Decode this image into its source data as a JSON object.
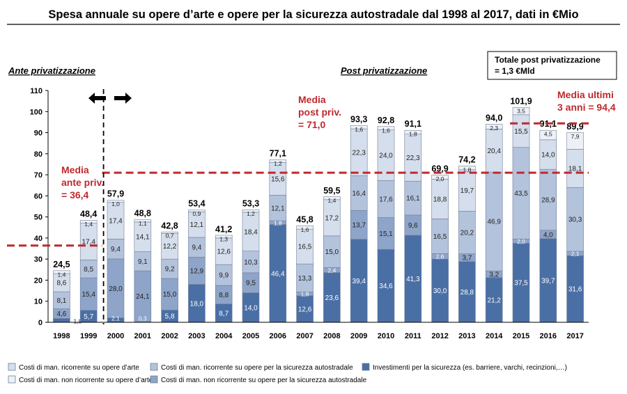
{
  "chart_data": {
    "type": "bar",
    "stacked": true,
    "title": "Spesa annuale su opere d’arte e opere per la sicurezza autostradale dal 1998 al 2017, dati in €Mio",
    "ylim": [
      0,
      110
    ],
    "yticks": [
      "0",
      "10",
      "20",
      "30",
      "40",
      "50",
      "60",
      "70",
      "80",
      "90",
      "100",
      "110"
    ],
    "grid": false,
    "legend_position": "bottom",
    "categories": [
      "1998",
      "1999",
      "2000",
      "2001",
      "2002",
      "2003",
      "2004",
      "2005",
      "2006",
      "2007",
      "2008",
      "2009",
      "2010",
      "2011",
      "2012",
      "2013",
      "2014",
      "2015",
      "2016",
      "2017"
    ],
    "totals": [
      24.5,
      48.4,
      57.9,
      48.8,
      42.8,
      53.4,
      41.2,
      53.3,
      77.1,
      45.8,
      59.5,
      93.3,
      92.8,
      91.1,
      69.9,
      74.2,
      94.0,
      101.9,
      91.1,
      89.9
    ],
    "totals_labels": [
      "24,5",
      "48,4",
      "57,9",
      "48,8",
      "42,8",
      "53,4",
      "41,2",
      "53,3",
      "77,1",
      "45,8",
      "59,5",
      "93,3",
      "92,8",
      "91,1",
      "69,9",
      "74,2",
      "94,0",
      "101,9",
      "91,1",
      "89,9"
    ],
    "series": [
      {
        "name": "Investimenti per la sicurezza (es. barriere, varchi, recinzioni,…)",
        "color": "#4A6FA5",
        "values": [
          1.8,
          5.7,
          2.1,
          0.3,
          5.8,
          18.0,
          8.7,
          14.0,
          46.4,
          12.6,
          23.6,
          39.4,
          34.6,
          41.3,
          30.0,
          28.8,
          21.2,
          37.5,
          39.7,
          31.6
        ],
        "labels": [
          "1,8",
          "5,7",
          "2,1",
          "0,3",
          "5,8",
          "18,0",
          "8,7",
          "14,0",
          "46,4",
          "12,6",
          "23,6",
          "39,4",
          "34,6",
          "41,3",
          "30,0",
          "28,8",
          "21,2",
          "37,5",
          "39,7",
          "31,6"
        ]
      },
      {
        "name": "Costi di man. non ricorrente su opere per la sicurezza autostradale",
        "color": "#8EA4C8",
        "values": [
          4.6,
          15.4,
          28.0,
          24.1,
          15.0,
          12.9,
          8.8,
          9.5,
          1.8,
          1.8,
          2.4,
          13.7,
          15.1,
          9.6,
          2.6,
          3.7,
          3.2,
          2.0,
          4.0,
          2.1
        ],
        "labels": [
          "4,6",
          "15,4",
          "28,0",
          "24,1",
          "15,0",
          "12,9",
          "8,8",
          "9,5",
          "1,8",
          "1,8",
          "2,4",
          "13,7",
          "15,1",
          "9,6",
          "2,6",
          "3,7",
          "3,2",
          "2,0",
          "4,0",
          "2,1"
        ]
      },
      {
        "name": "Costi di man. ricorrente su opere per la sicurezza autostradale",
        "color": "#B4C3DC",
        "values": [
          8.1,
          8.5,
          9.4,
          9.1,
          9.2,
          9.4,
          9.9,
          10.3,
          12.1,
          13.3,
          15.0,
          16.4,
          17.6,
          16.1,
          16.5,
          20.2,
          46.9,
          43.5,
          28.9,
          30.3
        ],
        "labels": [
          "8,1",
          "8,5",
          "9,4",
          "9,1",
          "9,2",
          "9,4",
          "9,9",
          "10,3",
          "12,1",
          "13,3",
          "15,0",
          "16,4",
          "17,6",
          "16,1",
          "16,5",
          "20,2",
          "46,9",
          "43,5",
          "28,9",
          "30,3"
        ]
      },
      {
        "name": "Costi di man. ricorrente su opere d’arte",
        "color": "#D5DEEC",
        "values": [
          8.6,
          17.4,
          17.4,
          14.1,
          12.2,
          12.1,
          12.6,
          18.4,
          15.6,
          16.5,
          17.2,
          22.3,
          24.0,
          22.3,
          18.8,
          19.7,
          20.4,
          15.5,
          14.0,
          18.1
        ],
        "labels": [
          "8,6",
          "17,4",
          "17,4",
          "14,1",
          "12,2",
          "12,1",
          "12,6",
          "18,4",
          "15,6",
          "16,5",
          "17,2",
          "22,3",
          "24,0",
          "22,3",
          "18,8",
          "19,7",
          "20,4",
          "15,5",
          "14,0",
          "18,1"
        ]
      },
      {
        "name": "Costi di man. non ricorrente su opere d’arte",
        "color": "#EDF1F7",
        "values": [
          1.4,
          1.4,
          1.0,
          1.1,
          0.7,
          0.9,
          1.3,
          1.2,
          1.2,
          1.6,
          1.4,
          1.6,
          1.6,
          1.8,
          2.0,
          1.8,
          2.3,
          3.5,
          4.5,
          7.9
        ],
        "labels": [
          "1,4",
          "1,4",
          "1,0",
          "1,1",
          "0,7",
          "0,9",
          "1,3",
          "1,2",
          "1,2",
          "1,6",
          "1,4",
          "1,6",
          "1,6",
          "1,8",
          "2,0",
          "1,8",
          "2,3",
          "3,5",
          "4,5",
          "7,9"
        ]
      }
    ],
    "reference_lines": [
      {
        "value": 36.4,
        "from": "1998",
        "to": "1999"
      },
      {
        "value": 71.0,
        "from": "2000",
        "to": "2017"
      },
      {
        "value": 94.4,
        "from": "2015",
        "to": "2017"
      }
    ],
    "annotations": {
      "ante": "Ante privatizzazione",
      "post": "Post privatizzazione",
      "media_ante": [
        "Media",
        "ante priv.",
        "= 36,4"
      ],
      "media_post": [
        "Media",
        "post priv.",
        "= 71,0"
      ],
      "media_ultimi": [
        "Media ultimi",
        "3 anni = 94,4"
      ],
      "totale_box": [
        "Totale post privatizzazione",
        "= 1,3 €Mld"
      ]
    },
    "divider_between": [
      "1999",
      "2000"
    ],
    "colors": {
      "accent": "#C0282D",
      "axis": "#000000"
    }
  },
  "legend_layout": [
    {
      "series": 3,
      "col": 0,
      "row": 0
    },
    {
      "series": 2,
      "col": 1,
      "row": 0
    },
    {
      "series": 0,
      "col": 2,
      "row": 0
    },
    {
      "series": 4,
      "col": 0,
      "row": 1
    },
    {
      "series": 1,
      "col": 1,
      "row": 1
    }
  ]
}
